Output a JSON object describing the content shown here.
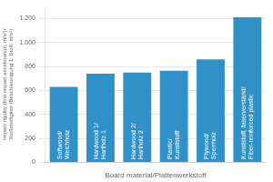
{
  "chart_data": {
    "type": "bar",
    "categories": [
      "Softwood/\nWeichholz",
      "Hardwood 1/\nHartholz 1",
      "Hardwood 2/\nHartholz 2",
      "Plastic/\nKunststoff",
      "Plywood/\nSperrholz",
      "Kunststoff, faserverstärkt/\nFiber-reinforced plastic"
    ],
    "values": [
      630,
      740,
      750,
      765,
      860,
      1210
    ],
    "color": "#3090c8",
    "xlabel": "Board material/Plattenwerkstoff",
    "ylabel": "Impact rigidity (first impact acceleration, m/s²)/\nStoßsteifigkeit (Beschleunigung 1. Stoß, m/s²)",
    "ylim": [
      0,
      1300
    ],
    "yticks": [
      0,
      200,
      400,
      600,
      800,
      {
        "value": 1000,
        "label": "1.000"
      },
      {
        "value": 1200,
        "label": "1.200"
      }
    ],
    "grid": true,
    "tick_labels": "y"
  }
}
